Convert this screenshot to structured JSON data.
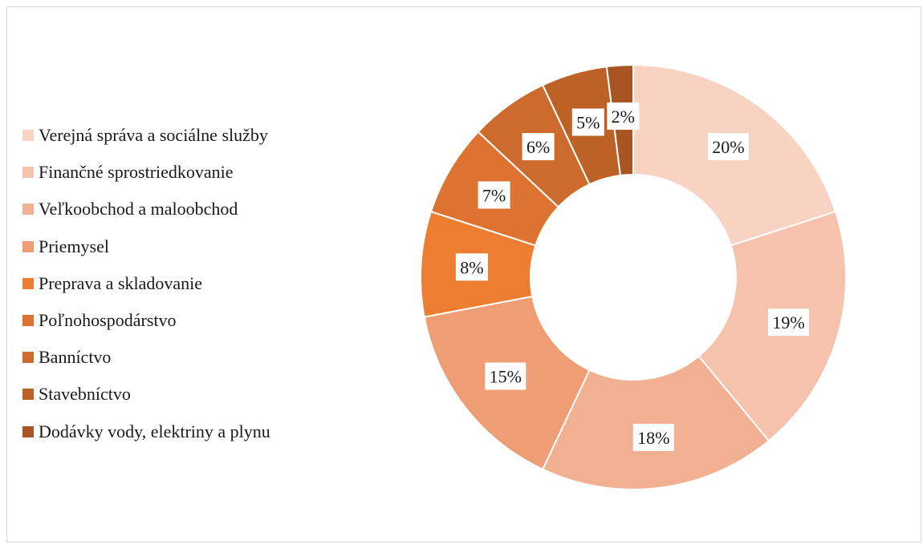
{
  "chart_data": {
    "type": "pie",
    "variant": "donut",
    "legend_position": "left",
    "categories": [
      "Verejná správa a sociálne služby",
      "Finančné sprostriedkovanie",
      "Veľkoobchod a maloobchod",
      "Priemysel",
      "Preprava a skladovanie",
      "Poľnohospodárstvo",
      "Banníctvo",
      "Stavebníctvo",
      "Dodávky vody, elektriny a plynu"
    ],
    "values": [
      20,
      19,
      18,
      15,
      8,
      7,
      6,
      5,
      2
    ],
    "labels": [
      "20%",
      "19%",
      "18%",
      "15%",
      "8%",
      "7%",
      "6%",
      "5%",
      "2%"
    ],
    "colors": [
      "#f8d3c4",
      "#f5c2ac",
      "#f2b092",
      "#ef9d75",
      "#ed7d31",
      "#de7331",
      "#cd6a2d",
      "#bd6127",
      "#a95422"
    ]
  }
}
